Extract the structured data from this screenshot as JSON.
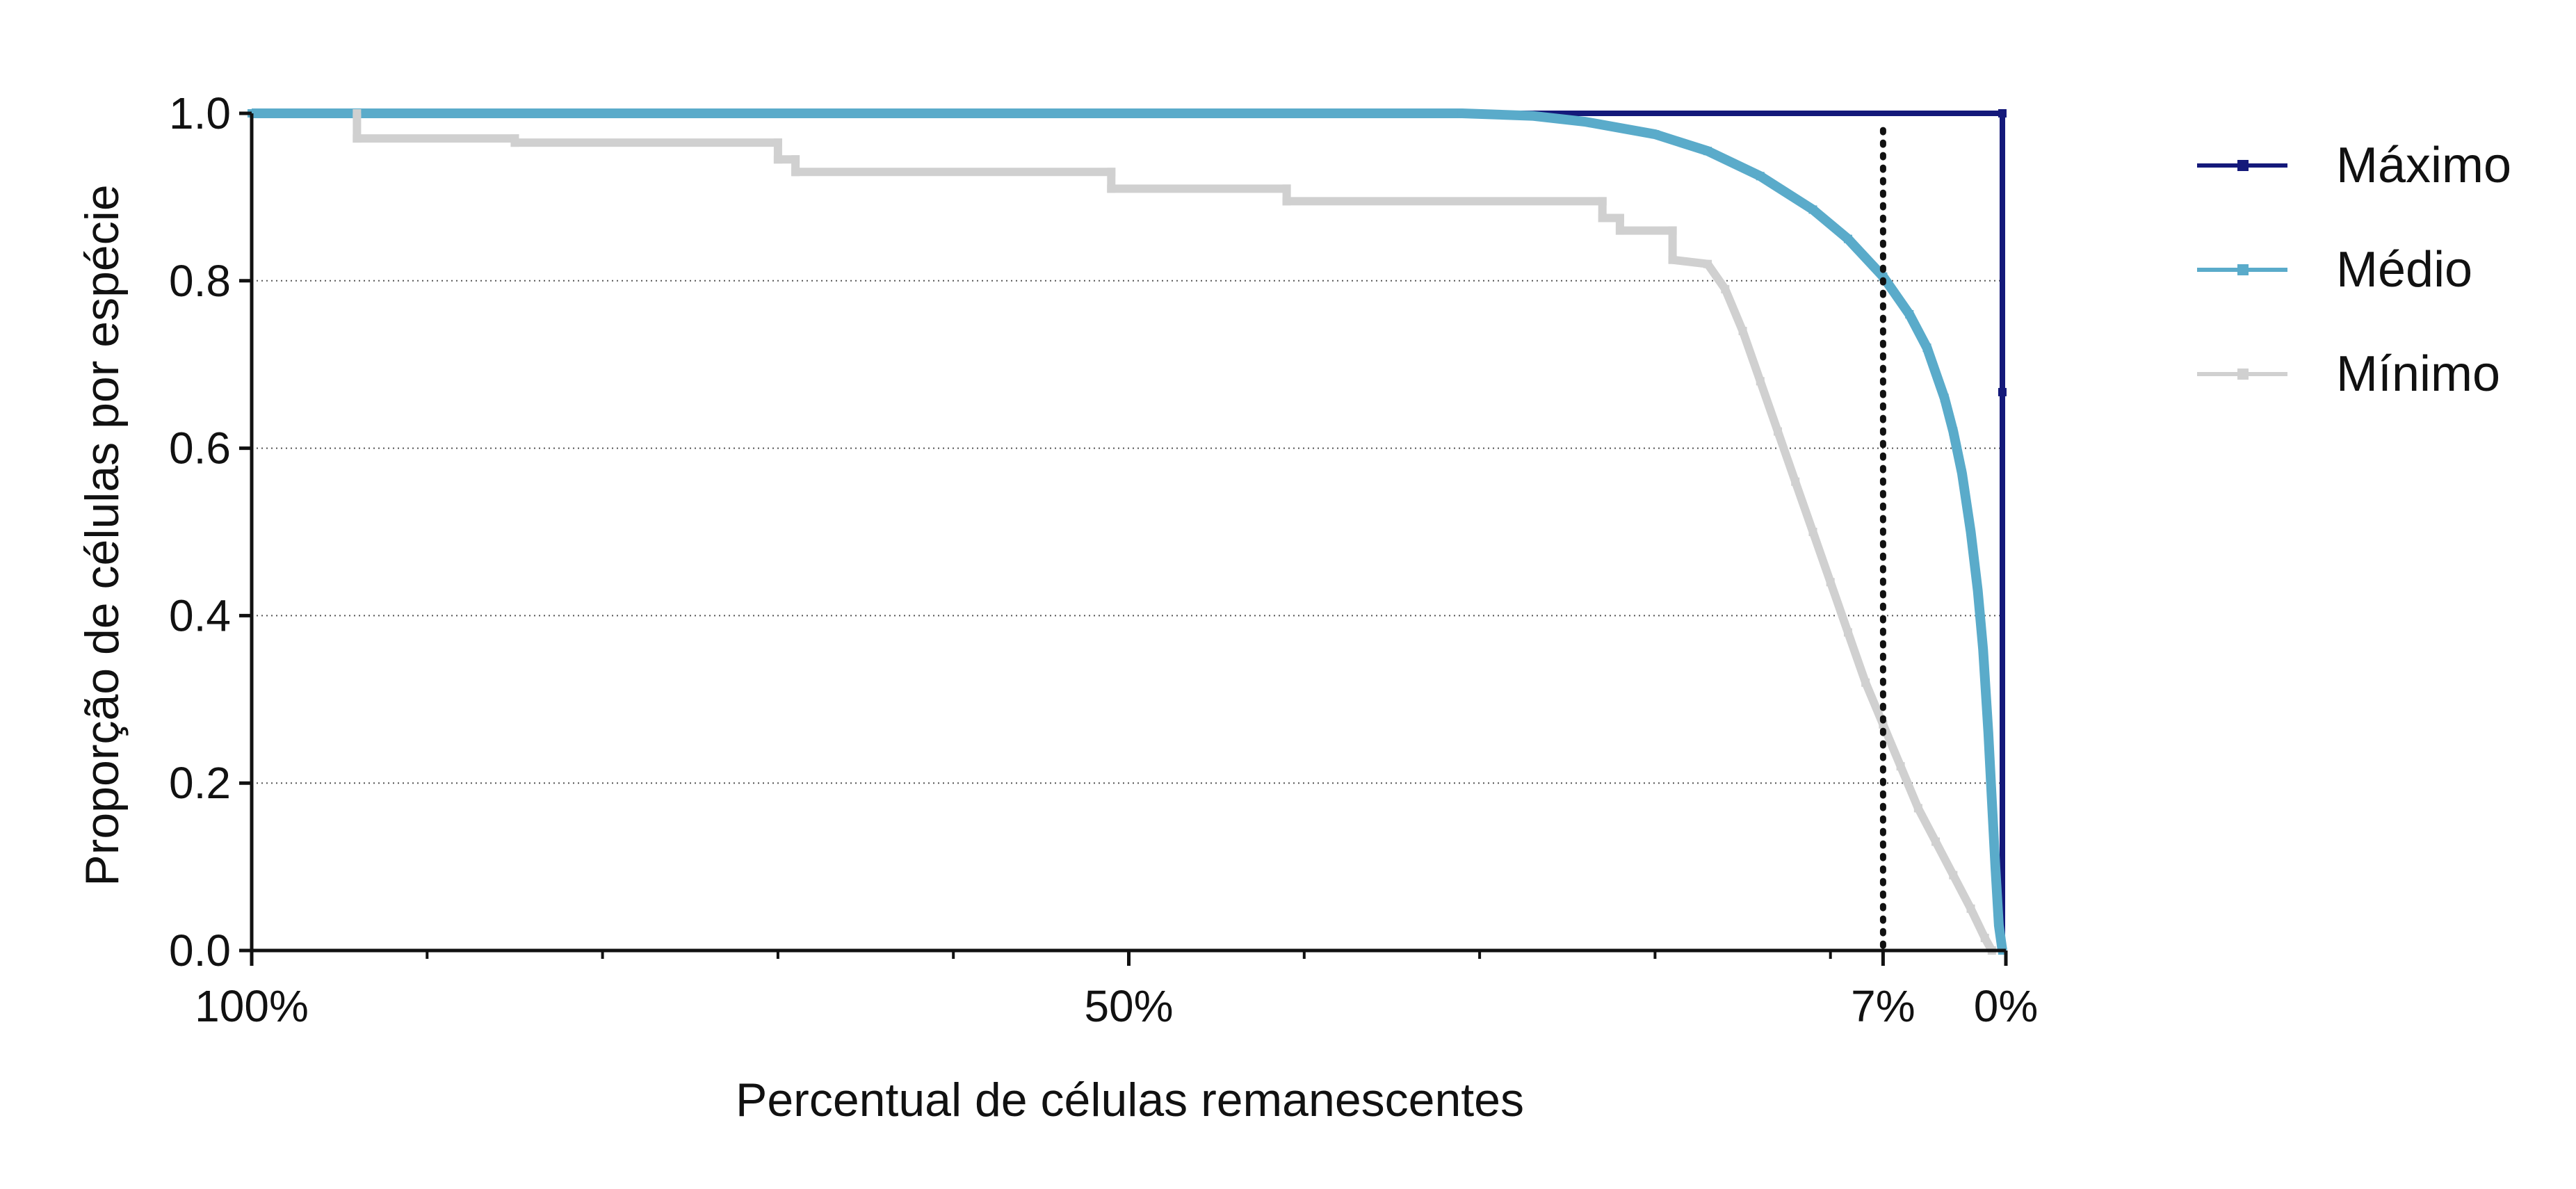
{
  "chart_data": {
    "type": "line",
    "xlabel": "Percentual de células remanescentes",
    "ylabel": "Proporção de células por espécie",
    "x_axis": {
      "range": [
        100,
        0
      ],
      "reversed": true,
      "ticks": [
        100,
        50,
        7,
        0
      ],
      "tick_labels": [
        "100%",
        "50%",
        "7%",
        "0%"
      ],
      "minor_ticks": [
        90,
        80,
        70,
        60,
        40,
        30,
        20,
        10
      ]
    },
    "y_axis": {
      "range": [
        0,
        1
      ],
      "ticks": [
        0,
        0.2,
        0.4,
        0.6,
        0.8,
        1.0
      ],
      "tick_labels": [
        "0.0",
        "0.2",
        "0.4",
        "0.6",
        "0.8",
        "1.0"
      ]
    },
    "grid": "horizontal dotted",
    "reference_line": {
      "x": 7,
      "style": "dotted",
      "color": "#111111"
    },
    "legend": {
      "placement": "right",
      "entries": [
        "Máximo",
        "Médio",
        "Mínimo"
      ]
    },
    "series": [
      {
        "name": "Máximo",
        "color": "#14197a",
        "step": false,
        "points": [
          [
            100,
            1.0
          ],
          [
            0.2,
            1.0
          ],
          [
            0.2,
            0.667
          ],
          [
            0.2,
            0.0
          ]
        ]
      },
      {
        "name": "Médio",
        "color": "#5aabca",
        "step": false,
        "points": [
          [
            100,
            1.0
          ],
          [
            31,
            1.0
          ],
          [
            27,
            0.997
          ],
          [
            24,
            0.99
          ],
          [
            20,
            0.975
          ],
          [
            17,
            0.955
          ],
          [
            14,
            0.925
          ],
          [
            11,
            0.885
          ],
          [
            9,
            0.85
          ],
          [
            7,
            0.805
          ],
          [
            5.5,
            0.76
          ],
          [
            4.5,
            0.72
          ],
          [
            3.5,
            0.66
          ],
          [
            3,
            0.62
          ],
          [
            2.5,
            0.57
          ],
          [
            2,
            0.5
          ],
          [
            1.6,
            0.43
          ],
          [
            1.3,
            0.36
          ],
          [
            1,
            0.26
          ],
          [
            0.8,
            0.18
          ],
          [
            0.6,
            0.1
          ],
          [
            0.4,
            0.03
          ],
          [
            0.2,
            0.0
          ]
        ]
      },
      {
        "name": "Mínimo",
        "color": "#d0d0d0",
        "step": true,
        "points": [
          [
            94,
            1.0
          ],
          [
            94,
            0.97
          ],
          [
            85,
            0.97
          ],
          [
            85,
            0.965
          ],
          [
            70,
            0.965
          ],
          [
            70,
            0.945
          ],
          [
            69,
            0.945
          ],
          [
            69,
            0.93
          ],
          [
            51,
            0.93
          ],
          [
            51,
            0.91
          ],
          [
            41,
            0.91
          ],
          [
            41,
            0.895
          ],
          [
            23,
            0.895
          ],
          [
            23,
            0.875
          ],
          [
            22,
            0.875
          ],
          [
            22,
            0.86
          ],
          [
            19,
            0.86
          ],
          [
            19,
            0.825
          ],
          [
            17,
            0.82
          ],
          [
            16,
            0.79
          ],
          [
            15,
            0.74
          ],
          [
            14,
            0.68
          ],
          [
            13,
            0.62
          ],
          [
            12,
            0.56
          ],
          [
            11,
            0.5
          ],
          [
            10,
            0.44
          ],
          [
            9,
            0.38
          ],
          [
            8,
            0.32
          ],
          [
            7,
            0.27
          ],
          [
            6,
            0.22
          ],
          [
            5,
            0.17
          ],
          [
            4,
            0.13
          ],
          [
            3,
            0.09
          ],
          [
            2,
            0.05
          ],
          [
            1.2,
            0.015
          ],
          [
            0.8,
            0.0
          ]
        ]
      }
    ]
  }
}
